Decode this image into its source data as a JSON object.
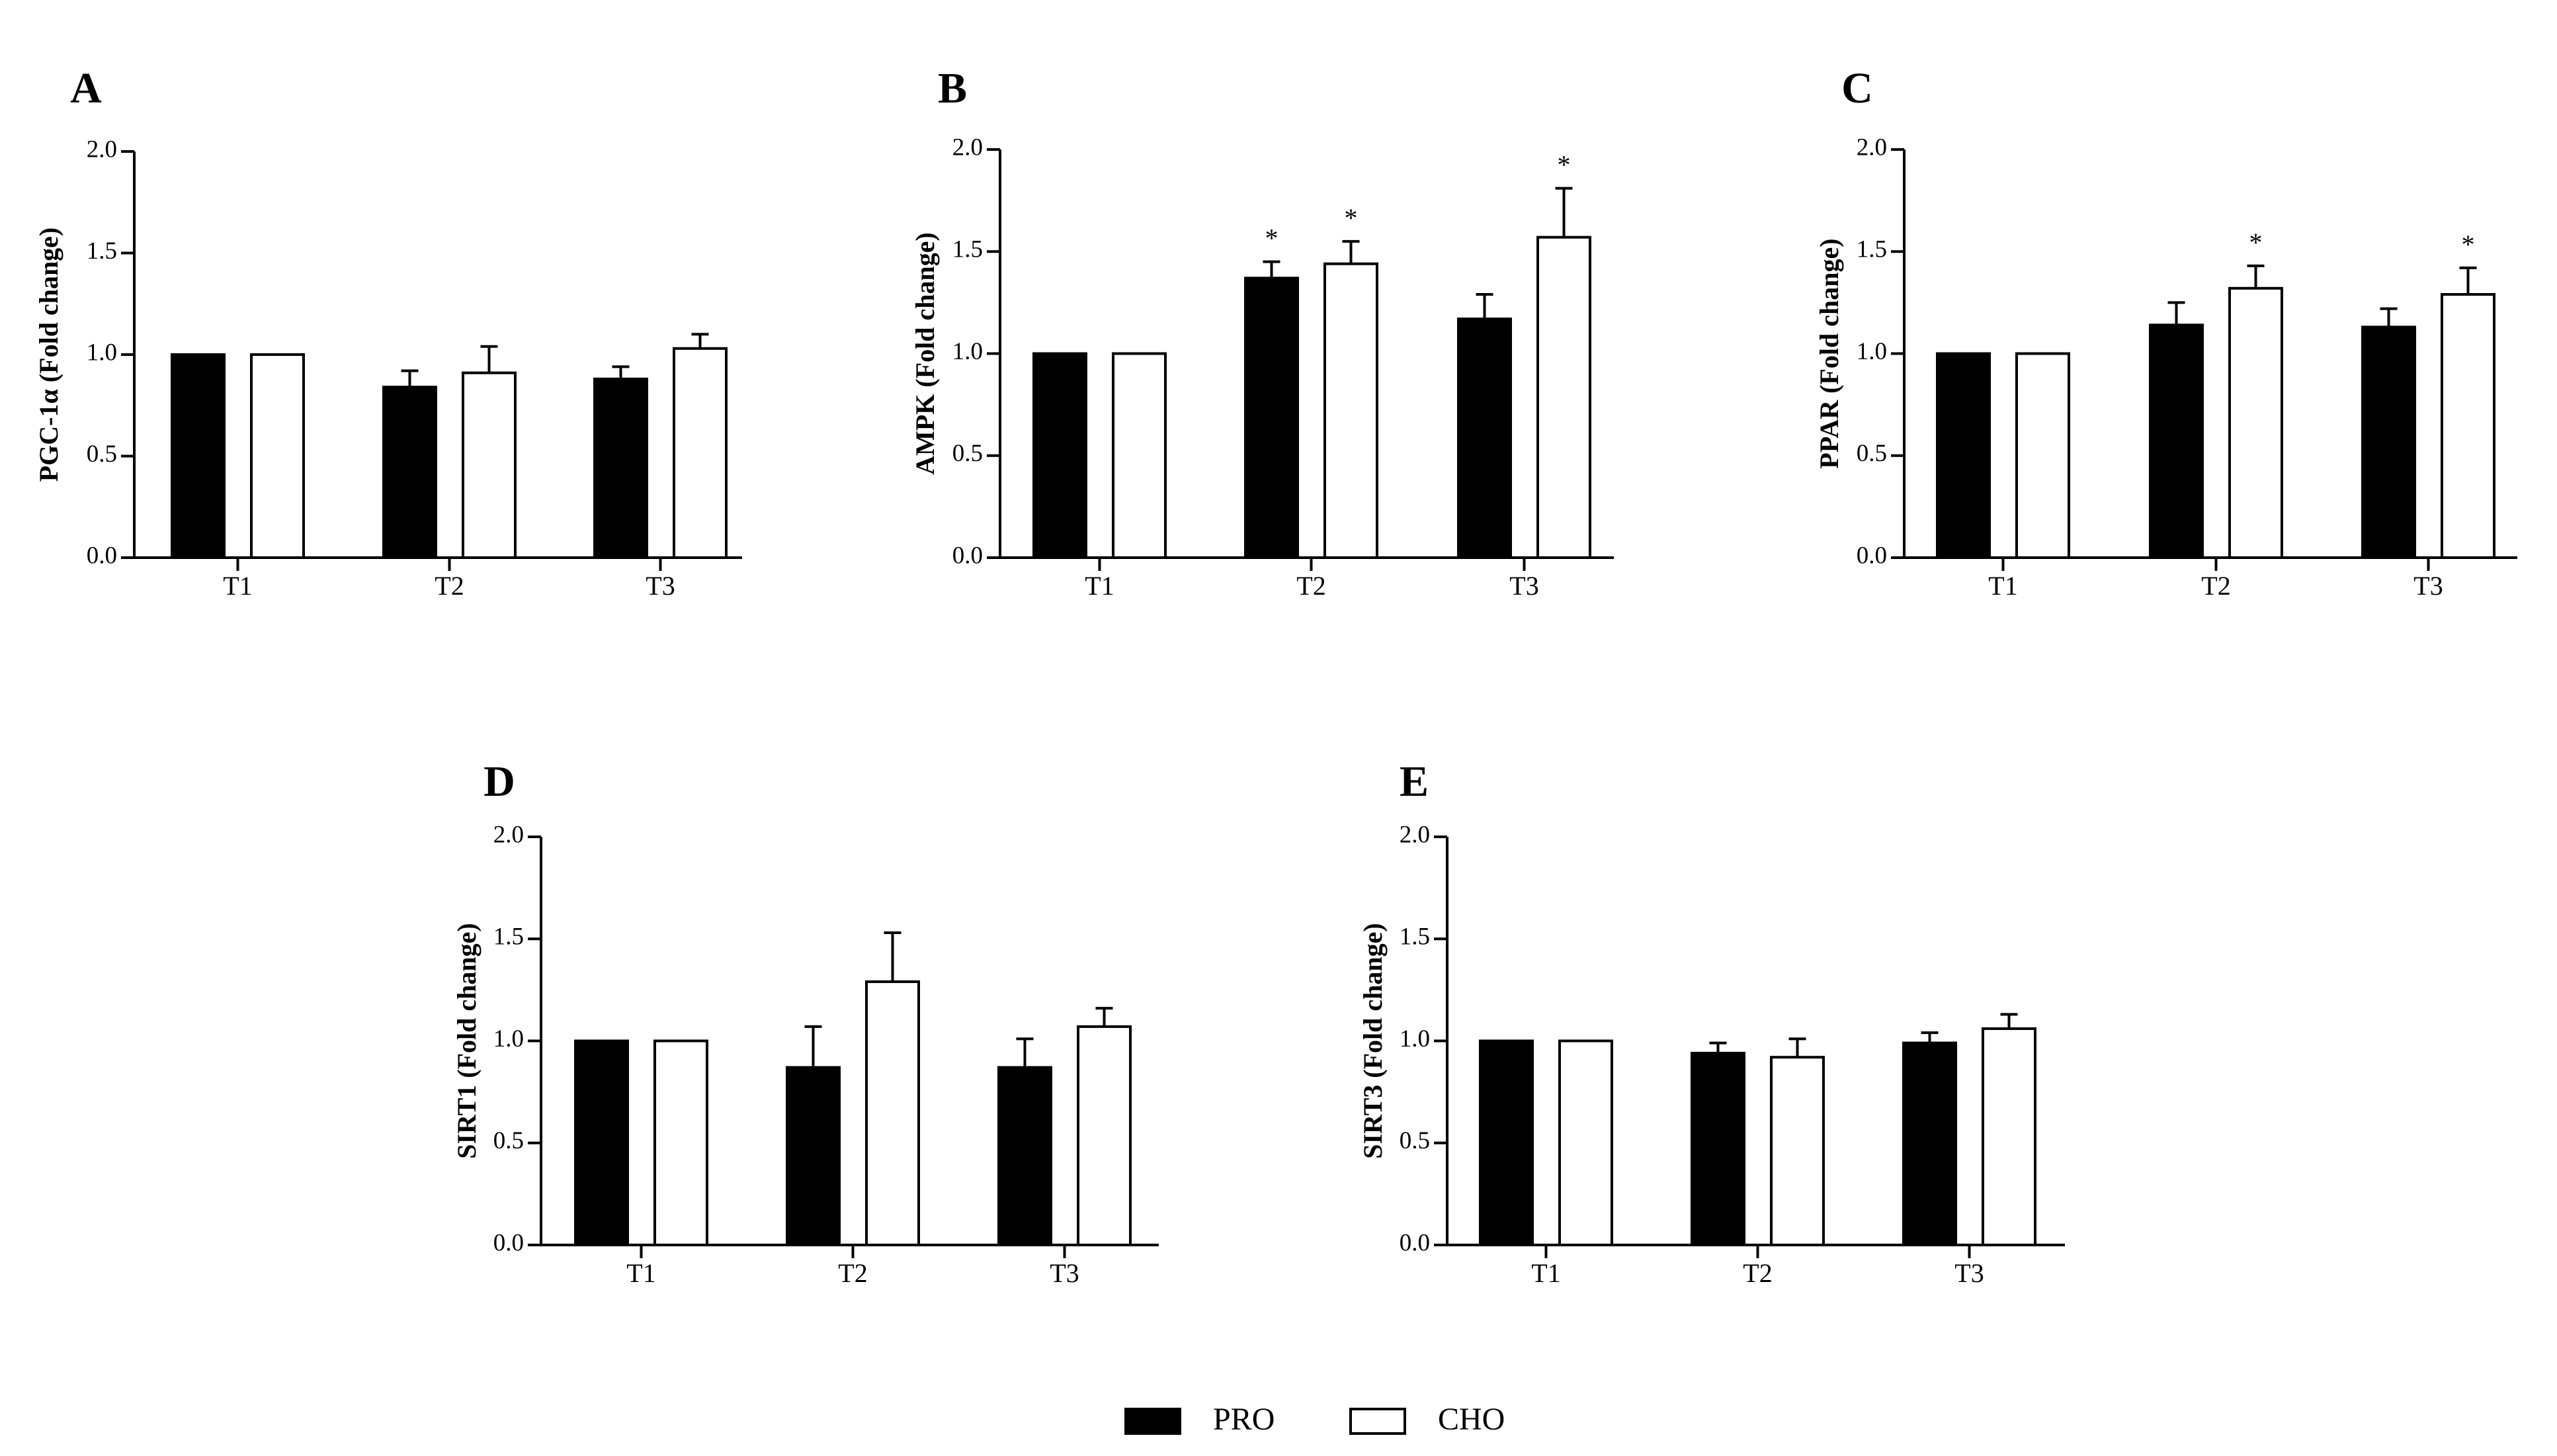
{
  "chart_data": [
    {
      "type": "bar",
      "panel": "A",
      "ylabel": "PGC-1α (Fold change)",
      "ylim": [
        0,
        2.0
      ],
      "yticks": [
        "0.0",
        "0.5",
        "1.0",
        "1.5",
        "2.0"
      ],
      "categories": [
        "T1",
        "T2",
        "T3"
      ],
      "series": [
        {
          "name": "PRO",
          "color": "#000000",
          "values": [
            1.0,
            0.84,
            0.88
          ],
          "errors": [
            0,
            0.08,
            0.06
          ],
          "sig": [
            "",
            "",
            ""
          ]
        },
        {
          "name": "CHO",
          "color": "#ffffff",
          "values": [
            1.0,
            0.91,
            1.03
          ],
          "errors": [
            0,
            0.13,
            0.07
          ],
          "sig": [
            "",
            "",
            ""
          ]
        }
      ]
    },
    {
      "type": "bar",
      "panel": "B",
      "ylabel": "AMPK (Fold change)",
      "ylim": [
        0,
        2.0
      ],
      "yticks": [
        "0.0",
        "0.5",
        "1.0",
        "1.5",
        "2.0"
      ],
      "categories": [
        "T1",
        "T2",
        "T3"
      ],
      "series": [
        {
          "name": "PRO",
          "color": "#000000",
          "values": [
            1.0,
            1.37,
            1.17
          ],
          "errors": [
            0,
            0.08,
            0.12
          ],
          "sig": [
            "",
            "*",
            ""
          ]
        },
        {
          "name": "CHO",
          "color": "#ffffff",
          "values": [
            1.0,
            1.44,
            1.57
          ],
          "errors": [
            0,
            0.11,
            0.24
          ],
          "sig": [
            "",
            "*",
            "*"
          ]
        }
      ]
    },
    {
      "type": "bar",
      "panel": "C",
      "ylabel": "PPAR (Fold change)",
      "ylim": [
        0,
        2.0
      ],
      "yticks": [
        "0.0",
        "0.5",
        "1.0",
        "1.5",
        "2.0"
      ],
      "categories": [
        "T1",
        "T2",
        "T3"
      ],
      "series": [
        {
          "name": "PRO",
          "color": "#000000",
          "values": [
            1.0,
            1.14,
            1.13
          ],
          "errors": [
            0,
            0.11,
            0.09
          ],
          "sig": [
            "",
            "",
            ""
          ]
        },
        {
          "name": "CHO",
          "color": "#ffffff",
          "values": [
            1.0,
            1.32,
            1.29
          ],
          "errors": [
            0,
            0.11,
            0.13
          ],
          "sig": [
            "",
            "*",
            "*"
          ]
        }
      ]
    },
    {
      "type": "bar",
      "panel": "D",
      "ylabel": "SIRT1 (Fold change)",
      "ylim": [
        0,
        2.0
      ],
      "yticks": [
        "0.0",
        "0.5",
        "1.0",
        "1.5",
        "2.0"
      ],
      "categories": [
        "T1",
        "T2",
        "T3"
      ],
      "series": [
        {
          "name": "PRO",
          "color": "#000000",
          "values": [
            1.0,
            0.87,
            0.87
          ],
          "errors": [
            0,
            0.2,
            0.14
          ],
          "sig": [
            "",
            "",
            ""
          ]
        },
        {
          "name": "CHO",
          "color": "#ffffff",
          "values": [
            1.0,
            1.29,
            1.07
          ],
          "errors": [
            0,
            0.24,
            0.09
          ],
          "sig": [
            "",
            "",
            ""
          ]
        }
      ]
    },
    {
      "type": "bar",
      "panel": "E",
      "ylabel": "SIRT3 (Fold change)",
      "ylim": [
        0,
        2.0
      ],
      "yticks": [
        "0.0",
        "0.5",
        "1.0",
        "1.5",
        "2.0"
      ],
      "categories": [
        "T1",
        "T2",
        "T3"
      ],
      "series": [
        {
          "name": "PRO",
          "color": "#000000",
          "values": [
            1.0,
            0.94,
            0.99
          ],
          "errors": [
            0,
            0.05,
            0.05
          ],
          "sig": [
            "",
            "",
            ""
          ]
        },
        {
          "name": "CHO",
          "color": "#ffffff",
          "values": [
            1.0,
            0.92,
            1.06
          ],
          "errors": [
            0,
            0.09,
            0.07
          ],
          "sig": [
            "",
            "",
            ""
          ]
        }
      ]
    }
  ],
  "legend": [
    {
      "label": "PRO",
      "color": "#000000"
    },
    {
      "label": "CHO",
      "color": "#ffffff"
    }
  ]
}
